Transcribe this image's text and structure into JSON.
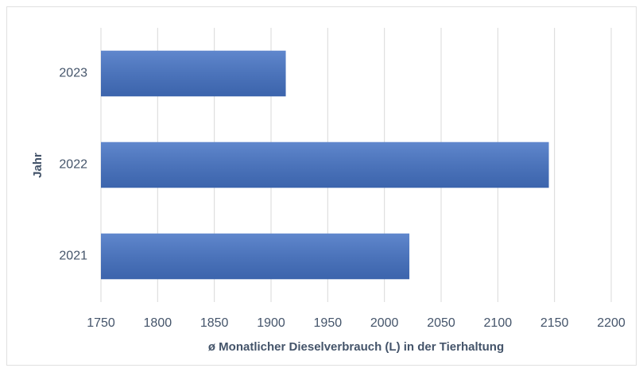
{
  "chart_data": {
    "type": "bar",
    "orientation": "horizontal",
    "x_label": "ø Monatlicher Dieselverbrauch (L) in der Tierhaltung",
    "y_label": "Jahr",
    "categories": [
      "2021",
      "2022",
      "2023"
    ],
    "values": [
      2022,
      2145,
      1913
    ],
    "color": "#4472c4",
    "xlim": [
      1750,
      2200
    ],
    "xticks": [
      1750,
      1800,
      1850,
      1900,
      1950,
      2000,
      2050,
      2100,
      2150,
      2200
    ],
    "grid": true
  }
}
